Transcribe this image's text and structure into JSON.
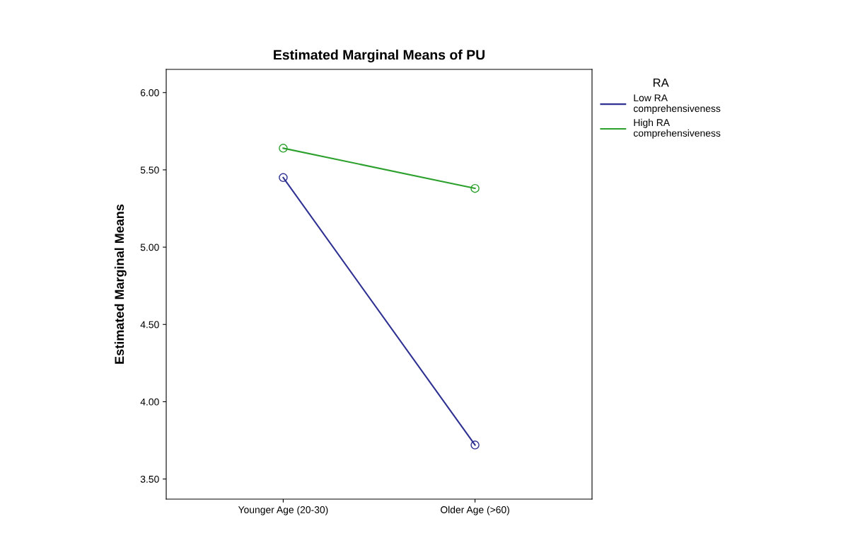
{
  "chart_data": {
    "type": "line",
    "title": "Estimated Marginal Means of PU",
    "ylabel": "Estimated Marginal Means",
    "legend_title": "RA",
    "categories": [
      "Younger Age (20-30)",
      "Older Age (>60)"
    ],
    "series": [
      {
        "name": "Low RA\ncomprehensiveness",
        "color": "#2e3192",
        "values": [
          5.45,
          3.72
        ]
      },
      {
        "name": "High RA\ncomprehensiveness",
        "color": "#2ca02c",
        "values": [
          5.64,
          5.38
        ]
      }
    ],
    "ylim": [
      3.37,
      6.15
    ],
    "yticks": [
      {
        "value": 3.5,
        "label": "3.50"
      },
      {
        "value": 4.0,
        "label": "4.00"
      },
      {
        "value": 4.5,
        "label": "4.50"
      },
      {
        "value": 5.0,
        "label": "5.00"
      },
      {
        "value": 5.5,
        "label": "5.50"
      },
      {
        "value": 6.0,
        "label": "6.00"
      }
    ],
    "marker": "circle",
    "line_style": "solid",
    "grid": false,
    "legend": "top right"
  }
}
